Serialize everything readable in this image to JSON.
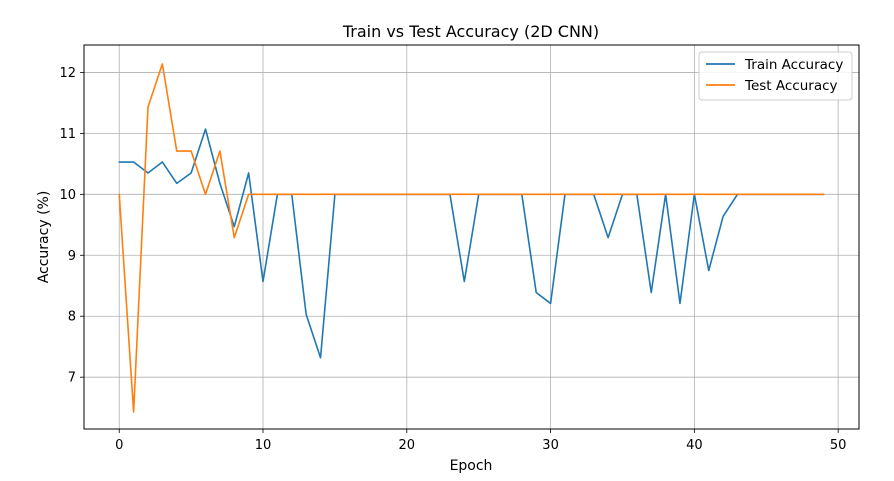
{
  "chart_data": {
    "type": "line",
    "title": "Train vs Test Accuracy (2D CNN)",
    "xlabel": "Epoch",
    "ylabel": "Accuracy (%)",
    "xlim": [
      -2.45,
      51.45
    ],
    "ylim": [
      6.15,
      12.45
    ],
    "xticks": [
      0,
      10,
      20,
      30,
      40,
      50
    ],
    "yticks": [
      7,
      8,
      9,
      10,
      11,
      12
    ],
    "grid": true,
    "legend_position": "top-right",
    "x": [
      0,
      1,
      2,
      3,
      4,
      5,
      6,
      7,
      8,
      9,
      10,
      11,
      12,
      13,
      14,
      15,
      16,
      17,
      18,
      19,
      20,
      21,
      22,
      23,
      24,
      25,
      26,
      27,
      28,
      29,
      30,
      31,
      32,
      33,
      34,
      35,
      36,
      37,
      38,
      39,
      40,
      41,
      42,
      43,
      44,
      45,
      46,
      47,
      48,
      49
    ],
    "series": [
      {
        "name": "Train Accuracy",
        "color": "#1f77b4",
        "values": [
          10.53,
          10.53,
          10.35,
          10.53,
          10.18,
          10.35,
          11.07,
          10.18,
          9.47,
          10.35,
          8.57,
          10.0,
          10.0,
          8.03,
          7.32,
          10.0,
          10.0,
          10.0,
          10.0,
          10.0,
          10.0,
          10.0,
          10.0,
          10.0,
          8.57,
          10.0,
          10.0,
          10.0,
          10.0,
          8.39,
          8.21,
          10.0,
          10.0,
          10.0,
          9.29,
          10.0,
          10.0,
          8.39,
          10.0,
          8.21,
          10.0,
          8.75,
          9.64,
          10.0,
          10.0,
          10.0,
          10.0,
          10.0,
          10.0,
          10.0
        ]
      },
      {
        "name": "Test Accuracy",
        "color": "#ff7f0e",
        "values": [
          10.0,
          6.43,
          11.43,
          12.14,
          10.71,
          10.71,
          10.0,
          10.71,
          9.29,
          10.0,
          10.0,
          10.0,
          10.0,
          10.0,
          10.0,
          10.0,
          10.0,
          10.0,
          10.0,
          10.0,
          10.0,
          10.0,
          10.0,
          10.0,
          10.0,
          10.0,
          10.0,
          10.0,
          10.0,
          10.0,
          10.0,
          10.0,
          10.0,
          10.0,
          10.0,
          10.0,
          10.0,
          10.0,
          10.0,
          10.0,
          10.0,
          10.0,
          10.0,
          10.0,
          10.0,
          10.0,
          10.0,
          10.0,
          10.0,
          10.0
        ]
      }
    ]
  }
}
